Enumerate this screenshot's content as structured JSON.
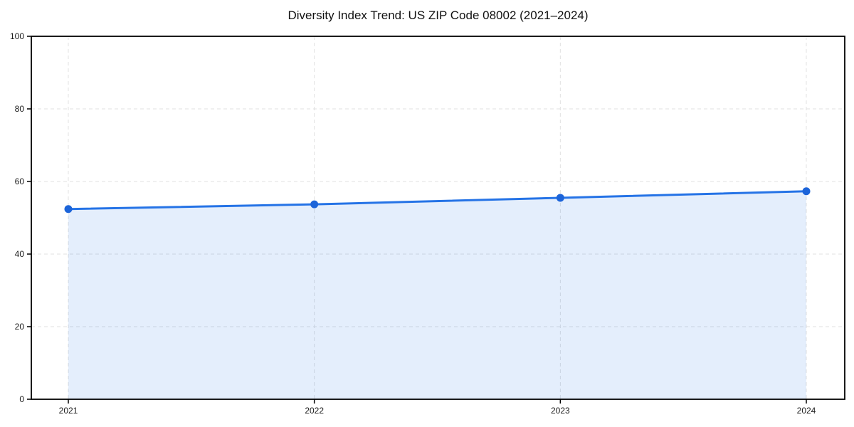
{
  "chart_data": {
    "type": "line",
    "title": "Diversity Index Trend: US ZIP Code 08002 (2021–2024)",
    "categories": [
      "2021",
      "2022",
      "2023",
      "2024"
    ],
    "series": [
      {
        "name": "Diversity Index",
        "values": [
          52.4,
          53.7,
          55.5,
          57.3
        ]
      }
    ],
    "xlabel": "",
    "ylabel": "",
    "ylim": [
      0,
      100
    ],
    "yticks": [
      0,
      20,
      40,
      60,
      80,
      100
    ],
    "grid": true,
    "grid_style": "dashed",
    "legend": false,
    "area_fill": true,
    "colors": {
      "line": "#2573e6",
      "marker": "#1c64d9",
      "fill": "#2573e6",
      "fill_opacity": 0.12,
      "grid": "#e0e0e0",
      "axis": "#000000",
      "tick_label": "#1a1a1a",
      "title": "#111111",
      "background": "#ffffff"
    }
  }
}
